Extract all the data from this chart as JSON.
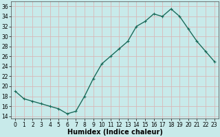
{
  "x": [
    0,
    1,
    2,
    3,
    4,
    5,
    6,
    7,
    8,
    9,
    10,
    11,
    12,
    13,
    14,
    15,
    16,
    17,
    18,
    19,
    20,
    21,
    22,
    23
  ],
  "y": [
    19,
    17.5,
    17,
    16.5,
    16,
    15.5,
    14.5,
    15,
    18,
    21.5,
    24.5,
    26,
    27.5,
    29,
    32,
    33,
    34.5,
    34,
    35.5,
    34,
    31.5,
    29,
    27,
    25
  ],
  "line_color": "#1a6b5a",
  "marker": "+",
  "marker_size": 3,
  "bg_color": "#c8eaea",
  "grid_color": "#d8b8b8",
  "xlabel": "Humidex (Indice chaleur)",
  "xlabel_fontsize": 7,
  "ylabel_ticks": [
    14,
    16,
    18,
    20,
    22,
    24,
    26,
    28,
    30,
    32,
    34,
    36
  ],
  "xlim": [
    -0.5,
    23.5
  ],
  "ylim": [
    13.5,
    37
  ],
  "xtick_labels": [
    "0",
    "1",
    "2",
    "3",
    "4",
    "5",
    "6",
    "7",
    "8",
    "9",
    "10",
    "11",
    "12",
    "13",
    "14",
    "15",
    "16",
    "17",
    "18",
    "19",
    "20",
    "21",
    "22",
    "23"
  ],
  "tick_fontsize": 5.5,
  "line_width": 1.0
}
